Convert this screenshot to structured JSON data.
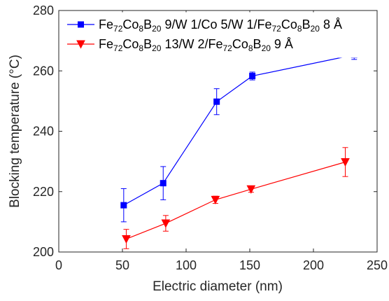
{
  "chart_data": {
    "type": "line",
    "title": "",
    "xlabel": "Electric diameter (nm)",
    "ylabel": "Blocking temperature (°C)",
    "xlim": [
      0,
      250
    ],
    "ylim": [
      200,
      280
    ],
    "xticks": [
      0,
      50,
      100,
      150,
      200,
      250
    ],
    "yticks": [
      200,
      220,
      240,
      260,
      280
    ],
    "grid": false,
    "legend_position": "top-left",
    "series": [
      {
        "name": "Fe72Co8B20 9/W 1/Co 5/W 1/Fe72Co8B20 8 Å",
        "label_parts": [
          [
            "Fe",
            ""
          ],
          [
            "72",
            "sub"
          ],
          [
            "Co",
            ""
          ],
          [
            "8",
            "sub"
          ],
          [
            "B",
            ""
          ],
          [
            "20",
            "sub"
          ],
          [
            " 9/W 1/Co 5/W 1/Fe",
            ""
          ],
          [
            "72",
            "sub"
          ],
          [
            "Co",
            ""
          ],
          [
            "8",
            "sub"
          ],
          [
            "B",
            ""
          ],
          [
            "20",
            "sub"
          ],
          [
            " 8 Å",
            ""
          ]
        ],
        "color": "#0000ff",
        "marker": "square",
        "x": [
          51,
          82,
          124,
          152,
          232
        ],
        "y": [
          215.5,
          222.8,
          249.8,
          258.3,
          265.3
        ],
        "yerr": [
          5.5,
          5.5,
          4.3,
          1.3,
          1.5
        ]
      },
      {
        "name": "Fe72Co8B20 13/W 2/Fe72Co8B20 9 Å",
        "label_parts": [
          [
            "Fe",
            ""
          ],
          [
            "72",
            "sub"
          ],
          [
            "Co",
            ""
          ],
          [
            "8",
            "sub"
          ],
          [
            "B",
            ""
          ],
          [
            "20",
            "sub"
          ],
          [
            " 13/W 2/Fe",
            ""
          ],
          [
            "72",
            "sub"
          ],
          [
            "Co",
            ""
          ],
          [
            "8",
            "sub"
          ],
          [
            "B",
            ""
          ],
          [
            "20",
            "sub"
          ],
          [
            " 9 Å",
            ""
          ]
        ],
        "color": "#ff0000",
        "marker": "triangle-down",
        "x": [
          53,
          84,
          123,
          151,
          225
        ],
        "y": [
          204.3,
          209.5,
          217.3,
          220.8,
          229.8
        ],
        "yerr": [
          3.2,
          2.6,
          1.2,
          1.0,
          4.8
        ]
      }
    ]
  }
}
